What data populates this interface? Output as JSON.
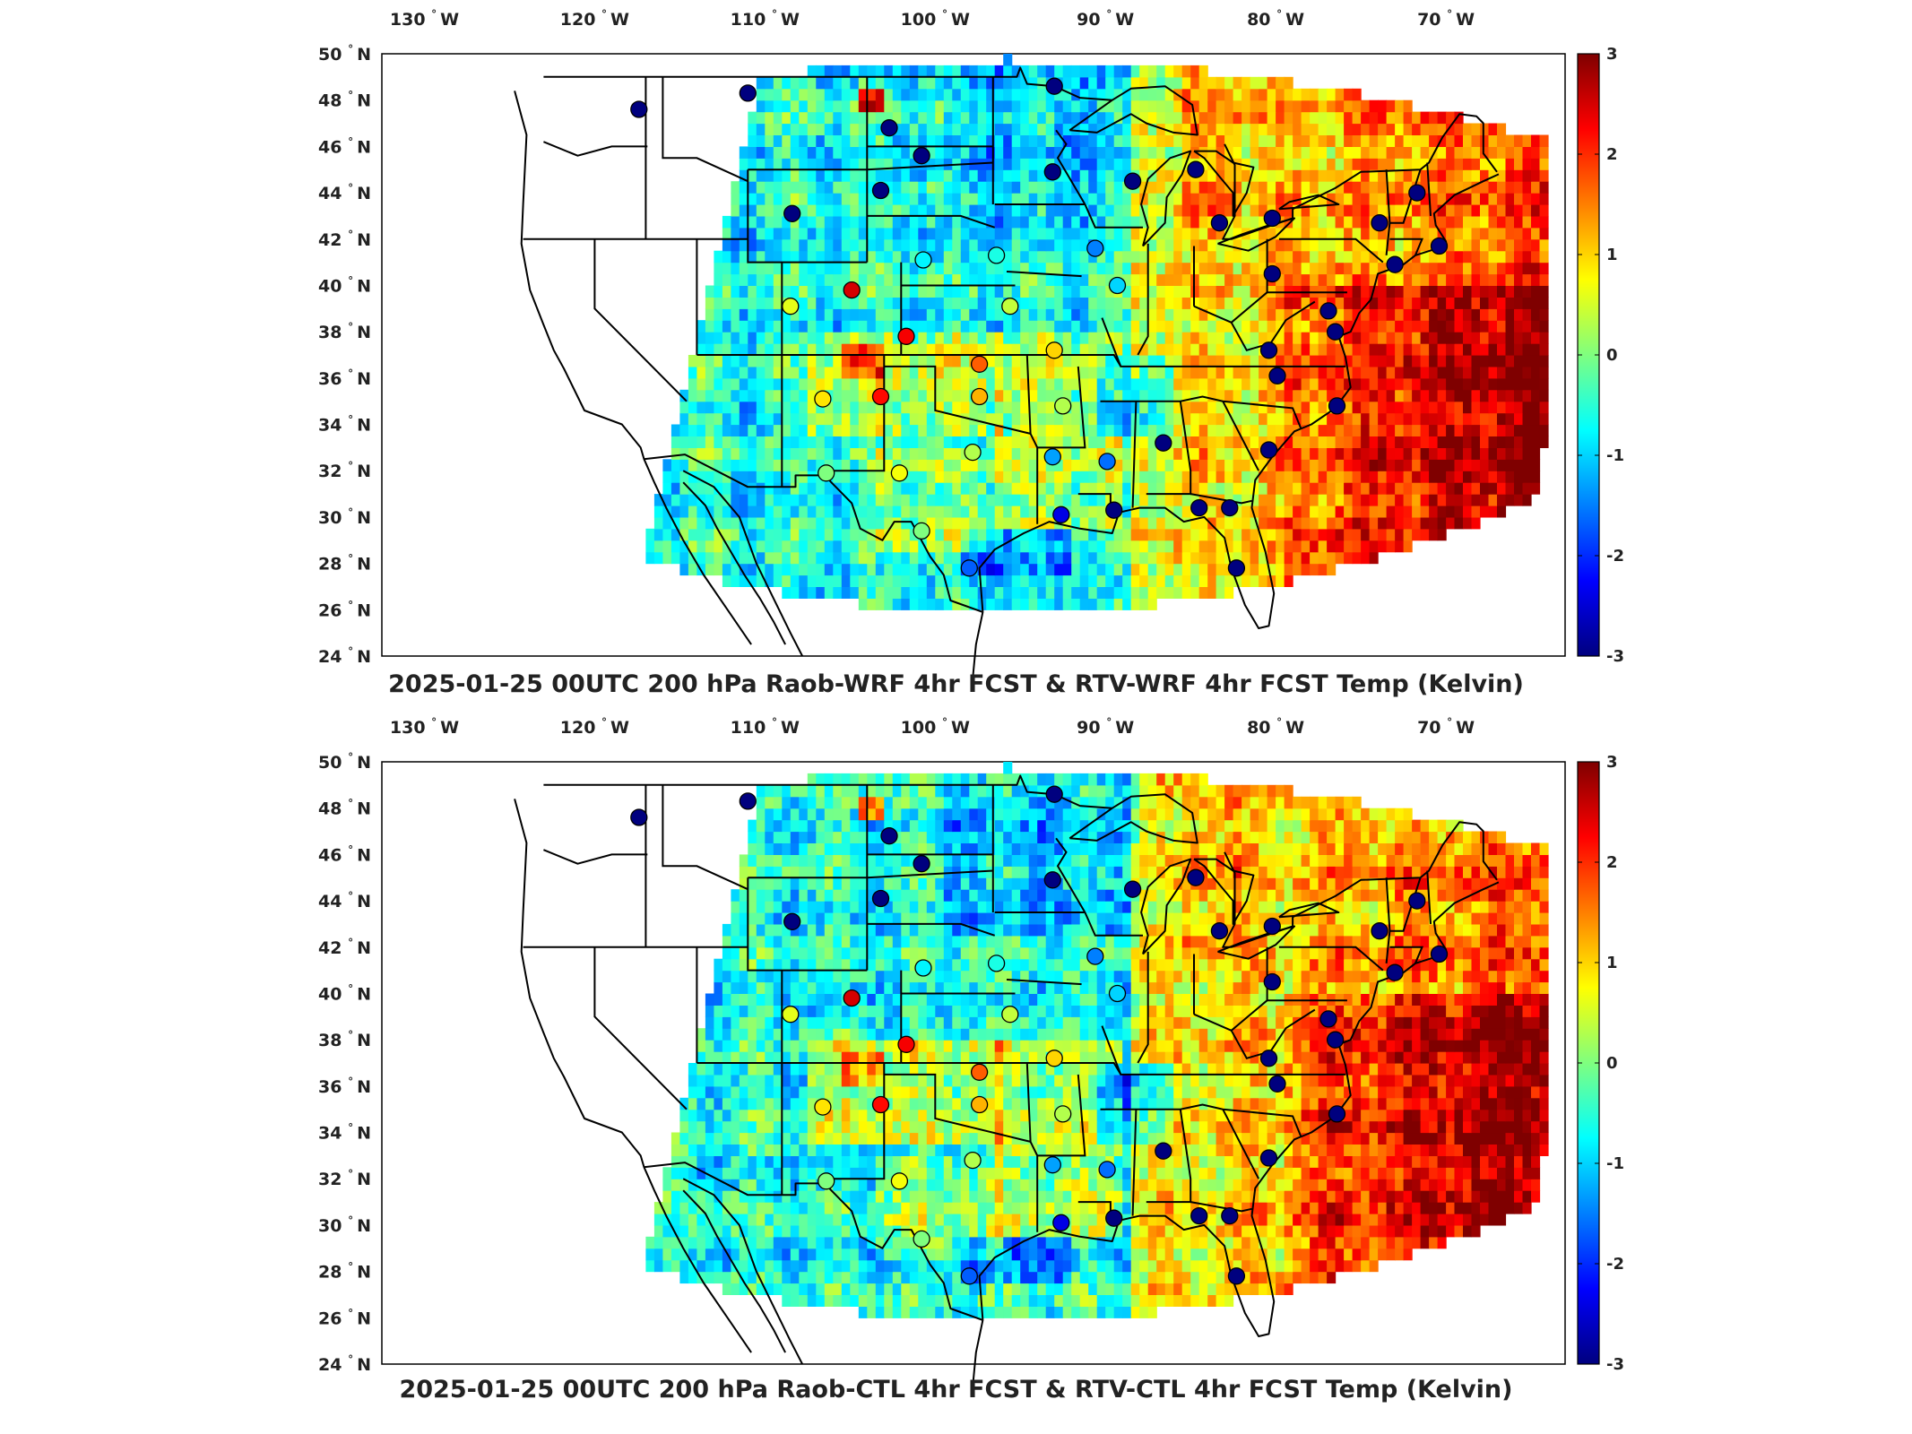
{
  "colormap": {
    "name": "jet",
    "vmin": -3,
    "vmax": 3,
    "stops": [
      "#00007f",
      "#0000ff",
      "#007fff",
      "#00ffff",
      "#7fff7f",
      "#ffff00",
      "#ff7f00",
      "#ff0000",
      "#7f0000"
    ],
    "ticks": [
      "3",
      "2",
      "1",
      "0",
      "-1",
      "-2",
      "-3"
    ]
  },
  "axes": {
    "lon_range": [
      -132.5,
      -63
    ],
    "lat_range": [
      24,
      50
    ],
    "lon_ticks": [
      {
        "value": -130,
        "label": "130"
      },
      {
        "value": -120,
        "label": "120"
      },
      {
        "value": -110,
        "label": "110"
      },
      {
        "value": -100,
        "label": "100"
      },
      {
        "value": -90,
        "label": "90"
      },
      {
        "value": -80,
        "label": "80"
      },
      {
        "value": -70,
        "label": "70"
      }
    ],
    "lon_suffix": "W",
    "lat_ticks": [
      {
        "value": 50,
        "label": "50"
      },
      {
        "value": 48,
        "label": "48"
      },
      {
        "value": 46,
        "label": "46"
      },
      {
        "value": 44,
        "label": "44"
      },
      {
        "value": 42,
        "label": "42"
      },
      {
        "value": 40,
        "label": "40"
      },
      {
        "value": 38,
        "label": "38"
      },
      {
        "value": 36,
        "label": "36"
      },
      {
        "value": 34,
        "label": "34"
      },
      {
        "value": 32,
        "label": "32"
      },
      {
        "value": 30,
        "label": "30"
      },
      {
        "value": 28,
        "label": "28"
      },
      {
        "value": 26,
        "label": "26"
      },
      {
        "value": 24,
        "label": "24"
      }
    ],
    "lat_suffix": "N",
    "degree_symbol": "°"
  },
  "panels": [
    {
      "title": "2025-01-25 00UTC 200 hPa Raob-WRF 4hr FCST & RTV-WRF 4hr FCST Temp (Kelvin)"
    },
    {
      "title": "2025-01-25 00UTC 200 hPa Raob-CTL 4hr FCST & RTV-CTL 4hr FCST Temp (Kelvin)"
    }
  ],
  "chart_data": {
    "type": "scatter",
    "x_unit": "longitude",
    "y_unit": "latitude",
    "value_unit": "Kelvin",
    "stations": [
      {
        "lon": -117.4,
        "lat": 47.6,
        "v": -3
      },
      {
        "lon": -111.0,
        "lat": 48.3,
        "v": -3
      },
      {
        "lon": -102.7,
        "lat": 46.8,
        "v": -3
      },
      {
        "lon": -100.8,
        "lat": 45.6,
        "v": -3
      },
      {
        "lon": -93.0,
        "lat": 48.6,
        "v": -3
      },
      {
        "lon": -93.1,
        "lat": 44.9,
        "v": -3
      },
      {
        "lon": -88.4,
        "lat": 44.5,
        "v": -3
      },
      {
        "lon": -84.7,
        "lat": 45.0,
        "v": -3
      },
      {
        "lon": -83.3,
        "lat": 42.7,
        "v": -3
      },
      {
        "lon": -80.2,
        "lat": 42.9,
        "v": -3
      },
      {
        "lon": -73.9,
        "lat": 42.7,
        "v": -3
      },
      {
        "lon": -71.7,
        "lat": 44.0,
        "v": -3
      },
      {
        "lon": -70.4,
        "lat": 41.7,
        "v": -3
      },
      {
        "lon": -73.0,
        "lat": 40.9,
        "v": -3
      },
      {
        "lon": -80.2,
        "lat": 40.5,
        "v": -3
      },
      {
        "lon": -76.9,
        "lat": 38.9,
        "v": -3
      },
      {
        "lon": -76.5,
        "lat": 38.0,
        "v": -3
      },
      {
        "lon": -80.4,
        "lat": 37.2,
        "v": -3
      },
      {
        "lon": -79.9,
        "lat": 36.1,
        "v": -3
      },
      {
        "lon": -76.4,
        "lat": 34.8,
        "v": -3
      },
      {
        "lon": -80.4,
        "lat": 32.9,
        "v": -3
      },
      {
        "lon": -84.5,
        "lat": 30.4,
        "v": -3
      },
      {
        "lon": -82.7,
        "lat": 30.4,
        "v": -3
      },
      {
        "lon": -82.3,
        "lat": 27.8,
        "v": -3
      },
      {
        "lon": -86.6,
        "lat": 33.2,
        "v": -3
      },
      {
        "lon": -89.5,
        "lat": 30.3,
        "v": -3
      },
      {
        "lon": -92.6,
        "lat": 30.1,
        "v": -2.4
      },
      {
        "lon": -89.9,
        "lat": 32.4,
        "v": -1.6
      },
      {
        "lon": -93.1,
        "lat": 32.6,
        "v": -1.3
      },
      {
        "lon": -98.0,
        "lat": 27.8,
        "v": -1.7
      },
      {
        "lon": -97.8,
        "lat": 32.8,
        "v": 0.3
      },
      {
        "lon": -100.8,
        "lat": 29.4,
        "v": 0.0
      },
      {
        "lon": -106.4,
        "lat": 31.9,
        "v": 0.0
      },
      {
        "lon": -102.1,
        "lat": 31.9,
        "v": 0.7
      },
      {
        "lon": -106.6,
        "lat": 35.1,
        "v": 0.9
      },
      {
        "lon": -103.2,
        "lat": 35.2,
        "v": 2.2
      },
      {
        "lon": -97.4,
        "lat": 35.2,
        "v": 1.2
      },
      {
        "lon": -97.4,
        "lat": 36.6,
        "v": 1.7
      },
      {
        "lon": -93.0,
        "lat": 37.2,
        "v": 1.0
      },
      {
        "lon": -92.5,
        "lat": 34.8,
        "v": 0.3
      },
      {
        "lon": -101.7,
        "lat": 37.8,
        "v": 2.3
      },
      {
        "lon": -104.9,
        "lat": 39.8,
        "v": 2.5
      },
      {
        "lon": -108.5,
        "lat": 39.1,
        "v": 0.6
      },
      {
        "lon": -95.6,
        "lat": 39.1,
        "v": 0.4
      },
      {
        "lon": -100.7,
        "lat": 41.1,
        "v": -0.8
      },
      {
        "lon": -96.4,
        "lat": 41.3,
        "v": -0.6
      },
      {
        "lon": -89.3,
        "lat": 40.0,
        "v": -1.0
      },
      {
        "lon": -90.6,
        "lat": 41.6,
        "v": -1.5
      },
      {
        "lon": -108.4,
        "lat": 43.1,
        "v": -3
      },
      {
        "lon": -103.2,
        "lat": 44.1,
        "v": -3
      }
    ]
  }
}
